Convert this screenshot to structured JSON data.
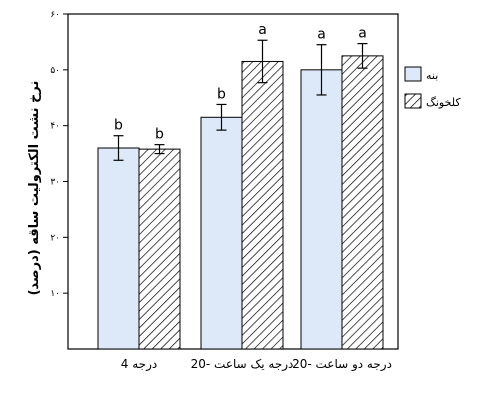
{
  "chart_data": {
    "type": "bar",
    "title": "",
    "xlabel": "",
    "ylabel": "نرخ نشت الکترولیت ساقه (درصد)",
    "ylim": [
      0,
      60
    ],
    "yticks": [
      {
        "value": 10,
        "label": "۱۰"
      },
      {
        "value": 20,
        "label": "۲۰"
      },
      {
        "value": 30,
        "label": "۳۰"
      },
      {
        "value": 40,
        "label": "۴۰"
      },
      {
        "value": 50,
        "label": "۵۰"
      },
      {
        "value": 60,
        "label": "۶۰"
      }
    ],
    "categories": [
      "4 درجه",
      "20- درجه یک ساعت",
      "20- درجه دو ساعت"
    ],
    "series": [
      {
        "name": "بنه",
        "pattern": "solid",
        "color": "#dde9f8",
        "values": [
          36,
          41.5,
          50
        ],
        "errors": [
          2.2,
          2.3,
          4.5
        ],
        "letters": [
          "b",
          "b",
          "a"
        ]
      },
      {
        "name": "کلخونگ",
        "pattern": "hatched",
        "color": "#ffffff",
        "values": [
          35.8,
          51.5,
          52.5
        ],
        "errors": [
          0.8,
          3.8,
          2.2
        ],
        "letters": [
          "b",
          "a",
          "a"
        ]
      }
    ],
    "legend_position": "right",
    "grid": false
  }
}
